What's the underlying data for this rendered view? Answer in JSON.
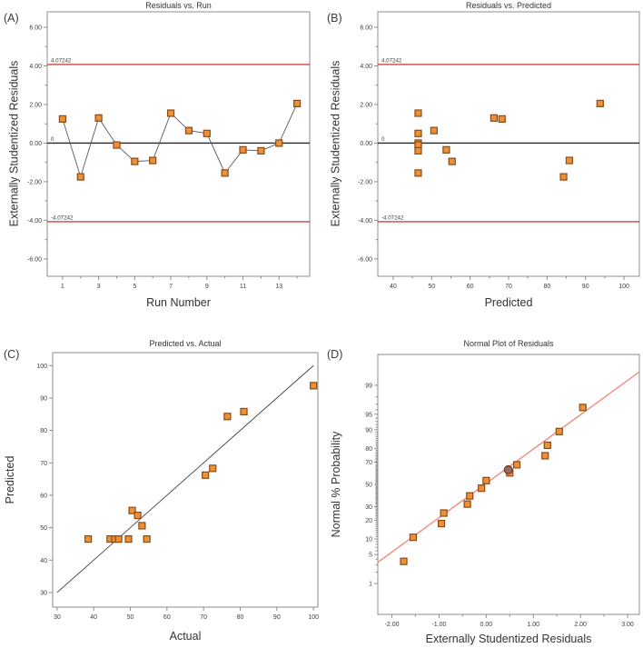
{
  "figure": {
    "background": "#ffffff"
  },
  "colors": {
    "frame": "#8c8c8c",
    "tick": "#8c8c8c",
    "tick_text": "#3d3d3d",
    "marker_fill": "#EC9138",
    "marker_stroke": "#8A4A16",
    "limit_line": "#C94444",
    "zero_line": "#262626",
    "series_line": "#5a5a5a",
    "diagonal_line": "#404040",
    "normal_line": "#F08C7E",
    "special_circle_fill": "#9C695B",
    "special_circle_stroke": "#66362A"
  },
  "chart_data": [
    {
      "id": "A",
      "panel_label": "(A)",
      "type": "line",
      "title": "Residuals vs. Run",
      "xlabel": "Run Number",
      "ylabel": "Externally Studentized Residuals",
      "xlim": [
        0.15,
        14.7
      ],
      "ylim": [
        -6.9,
        6.8
      ],
      "x_major_ticks": [
        1,
        3,
        5,
        7,
        9,
        11,
        13
      ],
      "x_major_labels": [
        "1",
        "3",
        "5",
        "7",
        "9",
        "11",
        "13"
      ],
      "x_minor_ticks": [
        2,
        4,
        6,
        8,
        10,
        12,
        14
      ],
      "y_major_ticks": [
        -6,
        -4,
        -2,
        0,
        2,
        4,
        6
      ],
      "y_major_labels": [
        "-6.00",
        "-4.00",
        "-2.00",
        "0.00",
        "2.00",
        "4.00",
        "6.00"
      ],
      "y_minor_ticks": [
        -5,
        -3,
        -1,
        1,
        3,
        5
      ],
      "ref_lines": [
        {
          "y": 4.07242,
          "label": "4.07242",
          "color_key": "limit_line"
        },
        {
          "y": -4.07242,
          "label": "-4.07242",
          "color_key": "limit_line"
        },
        {
          "y": 0,
          "label": "0",
          "color_key": "zero_line"
        }
      ],
      "connect": true,
      "points": {
        "x": [
          1,
          2,
          3,
          4,
          5,
          6,
          7,
          8,
          9,
          10,
          11,
          12,
          13,
          14
        ],
        "y": [
          1.25,
          -1.75,
          1.3,
          -0.1,
          -0.95,
          -0.9,
          1.55,
          0.65,
          0.5,
          -1.55,
          -0.35,
          -0.4,
          0.0,
          2.05
        ]
      }
    },
    {
      "id": "B",
      "panel_label": "(B)",
      "type": "scatter",
      "title": "Residuals vs. Predicted",
      "xlabel": "Predicted",
      "ylabel": "Externally Studentized Residuals",
      "xlim": [
        36,
        104
      ],
      "ylim": [
        -6.9,
        6.8
      ],
      "x_major_ticks": [
        40,
        50,
        60,
        70,
        80,
        90,
        100
      ],
      "x_major_labels": [
        "40",
        "50",
        "60",
        "70",
        "80",
        "90",
        "100"
      ],
      "x_minor_ticks": [
        45,
        55,
        65,
        75,
        85,
        95
      ],
      "y_major_ticks": [
        -6,
        -4,
        -2,
        0,
        2,
        4,
        6
      ],
      "y_major_labels": [
        "-6.00",
        "-4.00",
        "-2.00",
        "0.00",
        "2.00",
        "4.00",
        "6.00"
      ],
      "y_minor_ticks": [
        -5,
        -3,
        -1,
        1,
        3,
        5
      ],
      "ref_lines": [
        {
          "y": 4.07242,
          "label": "4.07242",
          "color_key": "limit_line"
        },
        {
          "y": -4.07242,
          "label": "-4.07242",
          "color_key": "limit_line"
        },
        {
          "y": 0,
          "label": "0",
          "color_key": "zero_line"
        }
      ],
      "connect": false,
      "points": {
        "x": [
          46.5,
          46.5,
          46.5,
          46.5,
          46.5,
          46.5,
          50.6,
          53.8,
          55.3,
          66.2,
          68.3,
          84.3,
          85.8,
          93.8
        ],
        "y": [
          1.55,
          0.5,
          0.0,
          -0.1,
          -0.4,
          -1.55,
          0.65,
          -0.35,
          -0.95,
          1.3,
          1.25,
          -1.75,
          -0.9,
          2.05
        ]
      }
    },
    {
      "id": "C",
      "panel_label": "(C)",
      "type": "scatter",
      "title": "Predicted vs. Actual",
      "xlabel": "Actual",
      "ylabel": "Predicted",
      "xlim": [
        28.8,
        101.2
      ],
      "ylim": [
        25.5,
        104
      ],
      "x_major_ticks": [
        30,
        40,
        50,
        60,
        70,
        80,
        90,
        100
      ],
      "x_major_labels": [
        "30",
        "40",
        "50",
        "60",
        "70",
        "80",
        "90",
        "100"
      ],
      "x_minor_ticks": [],
      "y_major_ticks": [
        30,
        40,
        50,
        60,
        70,
        80,
        90,
        100
      ],
      "y_major_labels": [
        "30",
        "40",
        "50",
        "60",
        "70",
        "80",
        "90",
        "100"
      ],
      "y_minor_ticks": [],
      "line": {
        "x1": 30,
        "y1": 30,
        "x2": 100,
        "y2": 100,
        "color_key": "diagonal_line"
      },
      "connect": false,
      "points": {
        "x": [
          38.5,
          44.5,
          45.8,
          46.8,
          49.5,
          54.5,
          50.5,
          52,
          53.2,
          70.5,
          72.5,
          76.5,
          81,
          100
        ],
        "y": [
          46.5,
          46.5,
          46.5,
          46.5,
          46.5,
          46.5,
          55.3,
          53.8,
          50.6,
          66.2,
          68.3,
          84.3,
          85.8,
          93.8
        ]
      }
    },
    {
      "id": "D",
      "panel_label": "(D)",
      "type": "scatter",
      "yscale": "normal",
      "title": "Normal Plot of Residuals",
      "xlabel": "Externally Studentized Residuals",
      "ylabel": "Normal % Probability",
      "xlim": [
        -2.3,
        3.25
      ],
      "zlim": [
        -3.05,
        3.05
      ],
      "x_major_ticks": [
        -2,
        -1,
        0,
        1,
        2,
        3
      ],
      "x_major_labels": [
        "-2.00",
        "-1.00",
        "0.00",
        "1.00",
        "2.00",
        "3.00"
      ],
      "x_minor_ticks": [
        -1.5,
        -0.5,
        0.5,
        1.5,
        2.5
      ],
      "y_major_ticks": [
        1,
        5,
        10,
        20,
        30,
        50,
        70,
        80,
        90,
        95,
        99
      ],
      "y_major_labels": [
        "1",
        "5",
        "10",
        "20",
        "30",
        "50",
        "70",
        "80",
        "90",
        "95",
        "99"
      ],
      "y_minor_step": 1,
      "line": {
        "x1": -2.3,
        "y1": 3.4,
        "x2": 3.25,
        "y2": 99.6,
        "color_key": "normal_line"
      },
      "connect": false,
      "points": {
        "x": [
          -1.75,
          -1.55,
          -0.95,
          -0.9,
          -0.4,
          -0.35,
          -0.1,
          0.0,
          0.5,
          0.65,
          1.25,
          1.3,
          1.55,
          2.05
        ],
        "y": [
          3.571,
          10.714,
          17.857,
          25,
          32.143,
          39.286,
          46.429,
          53.571,
          60.714,
          67.857,
          75,
          82.143,
          89.286,
          96.429
        ]
      },
      "special_point": {
        "x": 0.47,
        "y": 63.5,
        "shape": "circle"
      }
    }
  ]
}
